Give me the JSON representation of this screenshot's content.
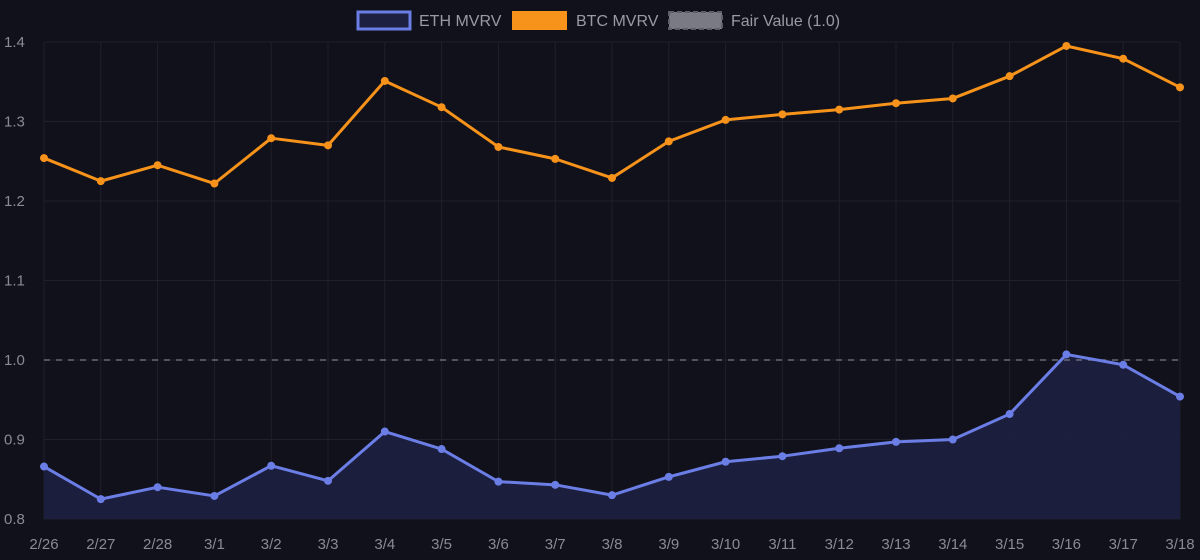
{
  "chart_data": {
    "type": "line",
    "categories": [
      "2/26",
      "2/27",
      "2/28",
      "3/1",
      "3/2",
      "3/3",
      "3/4",
      "3/5",
      "3/6",
      "3/7",
      "3/8",
      "3/9",
      "3/10",
      "3/11",
      "3/12",
      "3/13",
      "3/14",
      "3/15",
      "3/16",
      "3/17",
      "3/18"
    ],
    "series": [
      {
        "name": "ETH MVRV",
        "color": "#6b7ee6",
        "fill": "#1d2040",
        "values": [
          0.866,
          0.825,
          0.84,
          0.829,
          0.867,
          0.848,
          0.91,
          0.888,
          0.847,
          0.843,
          0.83,
          0.853,
          0.872,
          0.879,
          0.889,
          0.897,
          0.9,
          0.932,
          1.007,
          0.994,
          0.954
        ]
      },
      {
        "name": "BTC MVRV",
        "color": "#f7931a",
        "values": [
          1.254,
          1.225,
          1.245,
          1.222,
          1.279,
          1.27,
          1.351,
          1.318,
          1.268,
          1.253,
          1.229,
          1.275,
          1.302,
          1.309,
          1.315,
          1.323,
          1.329,
          1.357,
          1.395,
          1.379,
          1.343
        ]
      }
    ],
    "reference_line": {
      "name": "Fair Value (1.0)",
      "value": 1.0,
      "color": "#6b6b78",
      "style": "dashed"
    },
    "y_ticks": [
      "0.8",
      "0.9",
      "1.0",
      "1.1",
      "1.2",
      "1.3",
      "1.4"
    ],
    "ylim": [
      0.8,
      1.4
    ],
    "grid": true,
    "legend_position": "top-center",
    "title": "",
    "xlabel": "",
    "ylabel": ""
  }
}
